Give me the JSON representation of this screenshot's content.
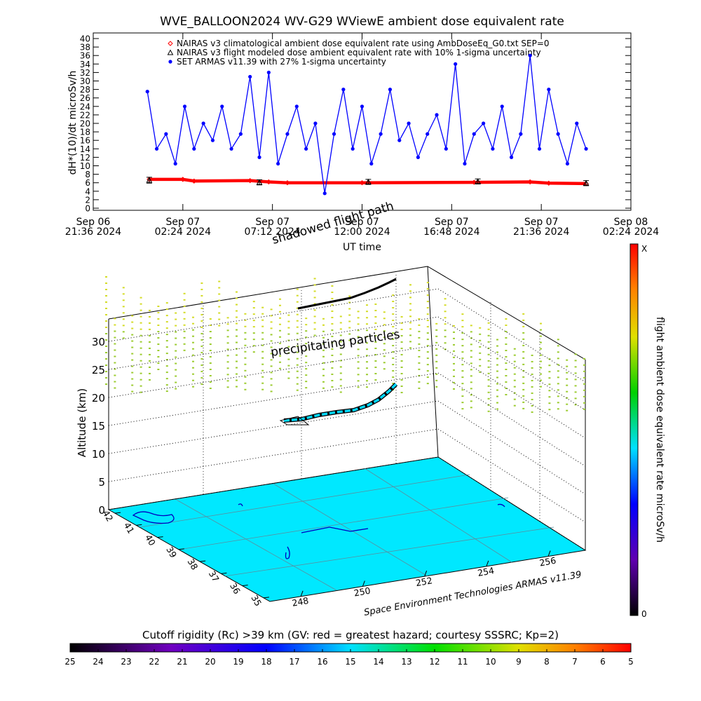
{
  "chart_data": [
    {
      "type": "line",
      "title": "WVE_BALLOON2024 WV-G29 WViewE ambient dose equivalent rate",
      "xlabel": "UT time",
      "ylabel": "dH*(10)/dt microSv/h",
      "xlim": [
        "2024-09-06T21:36",
        "2024-09-08T02:24"
      ],
      "xticks": [
        {
          "value": "2024-09-06T21:36",
          "label": [
            "Sep 06",
            "21:36 2024"
          ]
        },
        {
          "value": "2024-09-07T02:24",
          "label": [
            "Sep 07",
            "02:24 2024"
          ]
        },
        {
          "value": "2024-09-07T07:12",
          "label": [
            "Sep 07",
            "07:12 2024"
          ]
        },
        {
          "value": "2024-09-07T12:00",
          "label": [
            "Sep 07",
            "12:00 2024"
          ]
        },
        {
          "value": "2024-09-07T16:48",
          "label": [
            "Sep 07",
            "16:48 2024"
          ]
        },
        {
          "value": "2024-09-07T21:36",
          "label": [
            "Sep 07",
            "21:36 2024"
          ]
        },
        {
          "value": "2024-09-08T02:24",
          "label": [
            "Sep 08",
            "02:24 2024"
          ]
        }
      ],
      "ylim": [
        0,
        40
      ],
      "yticks": [
        0,
        2,
        4,
        6,
        8,
        10,
        12,
        14,
        16,
        18,
        20,
        22,
        24,
        26,
        28,
        30,
        32,
        34,
        36,
        38,
        40
      ],
      "legend": "upper left",
      "series": [
        {
          "name": "NAIRAS v3 climatological ambient dose equivalent rate using AmbDoseEq_G0.txt SEP=0",
          "color": "#ff0000",
          "marker": "diamond",
          "x": [
            "2024-09-07T00:36",
            "2024-09-07T02:24",
            "2024-09-07T03:00",
            "2024-09-07T06:00",
            "2024-09-07T07:00",
            "2024-09-07T08:00",
            "2024-09-07T12:00",
            "2024-09-07T18:00",
            "2024-09-07T21:00",
            "2024-09-07T22:00",
            "2024-09-08T00:00"
          ],
          "values": [
            6.8,
            6.8,
            6.4,
            6.5,
            6.2,
            6.0,
            6.0,
            6.1,
            6.2,
            5.9,
            5.8
          ]
        },
        {
          "name": "NAIRAS v3 flight modeled dose ambient equivalent rate with 10% 1-sigma uncertainty",
          "color": "#000000",
          "marker": "triangle",
          "x": [
            "2024-09-07T00:36",
            "2024-09-07T06:30",
            "2024-09-07T12:20",
            "2024-09-07T18:12",
            "2024-09-08T00:00"
          ],
          "values": [
            6.6,
            6.1,
            6.2,
            6.3,
            5.9
          ],
          "errors": [
            0.7,
            0.6,
            0.6,
            0.6,
            0.6
          ]
        },
        {
          "name": "SET ARMAS v11.39 with 27% 1-sigma uncertainty",
          "color": "#0000ff",
          "marker": "circle",
          "x": [
            "2024-09-07T00:30",
            "2024-09-07T01:00",
            "2024-09-07T01:30",
            "2024-09-07T02:00",
            "2024-09-07T02:30",
            "2024-09-07T03:00",
            "2024-09-07T03:30",
            "2024-09-07T04:00",
            "2024-09-07T04:30",
            "2024-09-07T05:00",
            "2024-09-07T05:30",
            "2024-09-07T06:00",
            "2024-09-07T06:30",
            "2024-09-07T07:00",
            "2024-09-07T07:30",
            "2024-09-07T08:00",
            "2024-09-07T08:30",
            "2024-09-07T09:00",
            "2024-09-07T09:30",
            "2024-09-07T10:00",
            "2024-09-07T10:30",
            "2024-09-07T11:00",
            "2024-09-07T11:30",
            "2024-09-07T12:00",
            "2024-09-07T12:30",
            "2024-09-07T13:00",
            "2024-09-07T13:30",
            "2024-09-07T14:00",
            "2024-09-07T14:30",
            "2024-09-07T15:00",
            "2024-09-07T15:30",
            "2024-09-07T16:00",
            "2024-09-07T16:30",
            "2024-09-07T17:00",
            "2024-09-07T17:30",
            "2024-09-07T18:00",
            "2024-09-07T18:30",
            "2024-09-07T19:00",
            "2024-09-07T19:30",
            "2024-09-07T20:00",
            "2024-09-07T20:30",
            "2024-09-07T21:00",
            "2024-09-07T21:30",
            "2024-09-07T22:00",
            "2024-09-07T22:30",
            "2024-09-07T23:00",
            "2024-09-07T23:30",
            "2024-09-08T00:00"
          ],
          "values": [
            27.5,
            14,
            17.5,
            10.5,
            24,
            14,
            20,
            16,
            24,
            14,
            17.5,
            31,
            12,
            32,
            10.5,
            17.5,
            24,
            14,
            20,
            3.5,
            17.5,
            28,
            14,
            24,
            10.5,
            17.5,
            28,
            16,
            20,
            12,
            17.5,
            22,
            14,
            34,
            10.5,
            17.5,
            20,
            14,
            24,
            12,
            17.5,
            36,
            14,
            28,
            17.5,
            10.5,
            20,
            14
          ]
        }
      ]
    },
    {
      "type": "scatter3d",
      "zlabel": "Altitude (km)",
      "zlim": [
        0,
        34
      ],
      "zticks": [
        0,
        5,
        10,
        15,
        20,
        25,
        30
      ],
      "xlim": [
        247,
        257.2
      ],
      "xticks": [
        248,
        250,
        252,
        254,
        256
      ],
      "ylim": [
        42.3,
        34.7
      ],
      "yticks": [
        42,
        41,
        40,
        39,
        38,
        37,
        36,
        35
      ],
      "annotations": [
        "shadowed flight path",
        "precipitating particles",
        "Space Environment Technologies ARMAS v11.39"
      ]
    },
    {
      "type": "colorbar",
      "title": "Cutoff rigidity (Rc) >39 km (GV: red = greatest hazard; courtesy SSSRC; Kp=2)",
      "xlim": [
        25,
        5
      ],
      "xticks": [
        25,
        24,
        23,
        22,
        21,
        20,
        19,
        18,
        17,
        16,
        15,
        14,
        13,
        12,
        11,
        10,
        9,
        8,
        7,
        6,
        5
      ]
    },
    {
      "type": "colorbar",
      "orientation": "vertical",
      "title": "flight ambient dose equivalent rate microSv/h",
      "labels": [
        "X",
        "0"
      ]
    }
  ]
}
